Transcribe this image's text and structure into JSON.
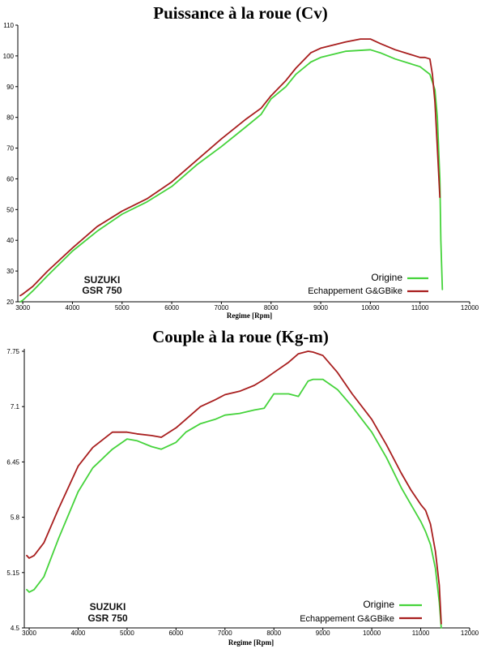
{
  "colors": {
    "origine": "#45d33b",
    "echappement": "#a81e1e"
  },
  "chart_data": [
    {
      "type": "line",
      "title": "Puissance à la roue (Cv)",
      "xlabel": "Regime [Rpm]",
      "ylabel": "",
      "xlim": [
        2900,
        12000
      ],
      "ylim": [
        20,
        110
      ],
      "xticks": [
        "3000",
        "4000",
        "5000",
        "6000",
        "7000",
        "8000",
        "9000",
        "10000",
        "11000",
        "12000"
      ],
      "xtick_values": [
        3000,
        4000,
        5000,
        6000,
        7000,
        8000,
        9000,
        10000,
        11000,
        12000
      ],
      "yticks": [
        "20",
        "30",
        "40",
        "50",
        "60",
        "70",
        "80",
        "90",
        "100",
        "110"
      ],
      "ytick_values": [
        20,
        30,
        40,
        50,
        60,
        70,
        80,
        90,
        100,
        110
      ],
      "brand_line1": "SUZUKI",
      "brand_line2": "GSR 750",
      "legend_position": "bottom-right",
      "series": [
        {
          "name": "Origine",
          "color_key": "origine",
          "x": [
            2950,
            3000,
            3200,
            3500,
            4000,
            4500,
            5000,
            5500,
            6000,
            6500,
            7000,
            7500,
            7800,
            8000,
            8300,
            8500,
            8800,
            9000,
            9500,
            10000,
            10200,
            10500,
            10800,
            11000,
            11200,
            11300,
            11350,
            11400,
            11420,
            11450
          ],
          "y": [
            20,
            20.5,
            23.5,
            28.5,
            36.5,
            43,
            48.5,
            52.5,
            57.5,
            64.5,
            70.5,
            77,
            81,
            86,
            90,
            94,
            98,
            99.5,
            101.5,
            102,
            101,
            99,
            97.5,
            96.5,
            94,
            89,
            80,
            60,
            40,
            24
          ]
        },
        {
          "name": "Echappement G&GBike",
          "color_key": "echappement",
          "x": [
            2950,
            3000,
            3200,
            3500,
            4000,
            4500,
            5000,
            5500,
            6000,
            6500,
            7000,
            7500,
            7800,
            8000,
            8300,
            8500,
            8800,
            9000,
            9500,
            9800,
            10000,
            10200,
            10500,
            10800,
            11000,
            11100,
            11200,
            11250,
            11300,
            11350,
            11400
          ],
          "y": [
            22,
            22.5,
            25,
            30,
            37.5,
            44.5,
            49.5,
            53.5,
            59,
            66,
            73,
            79.5,
            83,
            87,
            92,
            96,
            101,
            102.5,
            104.5,
            105.5,
            105.5,
            104,
            102,
            100.5,
            99.5,
            99.5,
            99,
            94,
            85,
            70,
            54
          ]
        }
      ]
    },
    {
      "type": "line",
      "title": "Couple à la roue (Kg-m)",
      "xlabel": "Regime [Rpm]",
      "ylabel": "",
      "xlim": [
        2900,
        12000
      ],
      "ylim": [
        4.5,
        7.75
      ],
      "xticks": [
        "3000",
        "4000",
        "5000",
        "6000",
        "7000",
        "8000",
        "9000",
        "10000",
        "11000",
        "12000"
      ],
      "xtick_values": [
        3000,
        4000,
        5000,
        6000,
        7000,
        8000,
        9000,
        10000,
        11000,
        12000
      ],
      "yticks": [
        "4.5",
        "5.15",
        "5.8",
        "6.45",
        "7.1",
        "7.75"
      ],
      "ytick_values": [
        4.5,
        5.15,
        5.8,
        6.45,
        7.1,
        7.75
      ],
      "brand_line1": "SUZUKI",
      "brand_line2": "GSR 750",
      "legend_position": "bottom-right",
      "series": [
        {
          "name": "Origine",
          "color_key": "origine",
          "x": [
            2950,
            3000,
            3100,
            3300,
            3600,
            4000,
            4300,
            4700,
            5000,
            5200,
            5500,
            5700,
            6000,
            6200,
            6500,
            6800,
            7000,
            7300,
            7600,
            7800,
            8000,
            8300,
            8500,
            8700,
            8800,
            9000,
            9300,
            9600,
            10000,
            10300,
            10600,
            10800,
            11000,
            11100,
            11200,
            11300,
            11380,
            11420
          ],
          "y": [
            4.95,
            4.92,
            4.95,
            5.1,
            5.55,
            6.1,
            6.38,
            6.6,
            6.72,
            6.7,
            6.63,
            6.6,
            6.68,
            6.8,
            6.9,
            6.95,
            7,
            7.02,
            7.06,
            7.08,
            7.25,
            7.25,
            7.22,
            7.4,
            7.42,
            7.42,
            7.3,
            7.1,
            6.8,
            6.5,
            6.15,
            5.95,
            5.75,
            5.63,
            5.48,
            5.2,
            4.8,
            4.5
          ]
        },
        {
          "name": "Echappement G&GBike",
          "color_key": "echappement",
          "x": [
            2950,
            3000,
            3100,
            3300,
            3600,
            4000,
            4300,
            4700,
            5000,
            5200,
            5500,
            5700,
            6000,
            6200,
            6500,
            6800,
            7000,
            7300,
            7600,
            7800,
            8000,
            8300,
            8500,
            8700,
            8800,
            9000,
            9300,
            9600,
            10000,
            10300,
            10600,
            10800,
            11000,
            11100,
            11200,
            11300,
            11380,
            11420
          ],
          "y": [
            5.35,
            5.32,
            5.35,
            5.5,
            5.9,
            6.4,
            6.62,
            6.8,
            6.8,
            6.78,
            6.76,
            6.74,
            6.85,
            6.95,
            7.1,
            7.18,
            7.24,
            7.28,
            7.35,
            7.42,
            7.5,
            7.62,
            7.72,
            7.75,
            7.74,
            7.7,
            7.5,
            7.25,
            6.95,
            6.65,
            6.32,
            6.12,
            5.95,
            5.88,
            5.72,
            5.4,
            5,
            4.55
          ]
        }
      ]
    }
  ]
}
